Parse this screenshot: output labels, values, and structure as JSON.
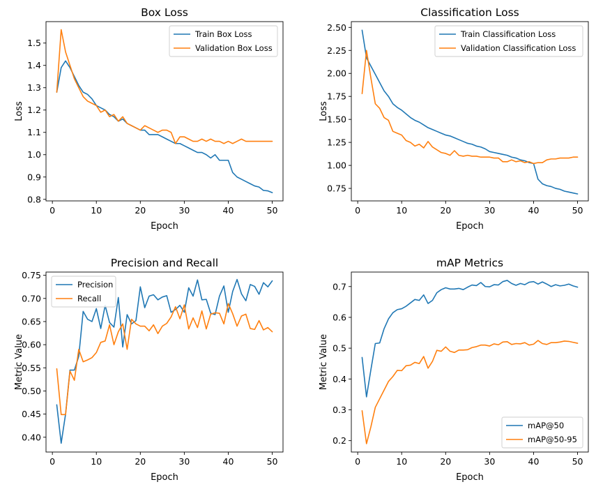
{
  "colors": {
    "blue": "#1f77b4",
    "orange": "#ff7f0e"
  },
  "chart_data": [
    {
      "type": "line",
      "title": "Box Loss",
      "xlabel": "Epoch",
      "ylabel": "Loss",
      "xlim": [
        -1.45,
        52.45
      ],
      "ylim": [
        0.793,
        1.596
      ],
      "xticks": [
        0,
        10,
        20,
        30,
        40,
        50
      ],
      "yticks": [
        0.8,
        0.9,
        1.0,
        1.1,
        1.2,
        1.3,
        1.4,
        1.5
      ],
      "ytick_labels": [
        "0.8",
        "0.9",
        "1.0",
        "1.1",
        "1.2",
        "1.3",
        "1.4",
        "1.5"
      ],
      "legend_position": "upper right",
      "grid": false,
      "series": [
        {
          "name": "Train Box Loss",
          "color": "#1f77b4",
          "x": [
            1,
            2,
            3,
            4,
            5,
            6,
            7,
            8,
            9,
            10,
            11,
            12,
            13,
            14,
            15,
            16,
            17,
            18,
            19,
            20,
            21,
            22,
            23,
            24,
            25,
            26,
            27,
            28,
            29,
            30,
            31,
            32,
            33,
            34,
            35,
            36,
            37,
            38,
            39,
            40,
            41,
            42,
            43,
            44,
            45,
            46,
            47,
            48,
            49,
            50
          ],
          "values": [
            1.28,
            1.39,
            1.42,
            1.39,
            1.35,
            1.31,
            1.28,
            1.27,
            1.25,
            1.22,
            1.21,
            1.2,
            1.18,
            1.17,
            1.15,
            1.16,
            1.14,
            1.13,
            1.12,
            1.11,
            1.11,
            1.09,
            1.09,
            1.09,
            1.08,
            1.07,
            1.06,
            1.05,
            1.05,
            1.04,
            1.03,
            1.02,
            1.01,
            1.01,
            1.0,
            0.985,
            1.0,
            0.975,
            0.975,
            0.975,
            0.92,
            0.9,
            0.89,
            0.88,
            0.87,
            0.86,
            0.855,
            0.84,
            0.838,
            0.83
          ]
        },
        {
          "name": "Validation Box Loss",
          "color": "#ff7f0e",
          "x": [
            1,
            2,
            3,
            4,
            5,
            6,
            7,
            8,
            9,
            10,
            11,
            12,
            13,
            14,
            15,
            16,
            17,
            18,
            19,
            20,
            21,
            22,
            23,
            24,
            25,
            26,
            27,
            28,
            29,
            30,
            31,
            32,
            33,
            34,
            35,
            36,
            37,
            38,
            39,
            40,
            41,
            42,
            43,
            44,
            45,
            46,
            47,
            48,
            49,
            50
          ],
          "values": [
            1.28,
            1.56,
            1.46,
            1.4,
            1.34,
            1.3,
            1.26,
            1.24,
            1.23,
            1.22,
            1.19,
            1.2,
            1.17,
            1.18,
            1.15,
            1.17,
            1.14,
            1.13,
            1.12,
            1.11,
            1.13,
            1.12,
            1.11,
            1.1,
            1.11,
            1.11,
            1.1,
            1.05,
            1.08,
            1.08,
            1.07,
            1.06,
            1.06,
            1.07,
            1.06,
            1.07,
            1.06,
            1.06,
            1.05,
            1.06,
            1.05,
            1.06,
            1.07,
            1.06,
            1.06,
            1.06,
            1.06,
            1.06,
            1.06,
            1.06
          ]
        }
      ]
    },
    {
      "type": "line",
      "title": "Classification Loss",
      "xlabel": "Epoch",
      "ylabel": "Loss",
      "xlim": [
        -1.45,
        52.45
      ],
      "ylim": [
        0.614,
        2.563
      ],
      "xticks": [
        0,
        10,
        20,
        30,
        40,
        50
      ],
      "yticks": [
        0.75,
        1.0,
        1.25,
        1.5,
        1.75,
        2.0,
        2.25,
        2.5
      ],
      "ytick_labels": [
        "0.75",
        "1.00",
        "1.25",
        "1.50",
        "1.75",
        "2.00",
        "2.25",
        "2.50"
      ],
      "legend_position": "upper right",
      "grid": false,
      "series": [
        {
          "name": "Train Classification Loss",
          "color": "#1f77b4",
          "x": [
            1,
            2,
            3,
            4,
            5,
            6,
            7,
            8,
            9,
            10,
            11,
            12,
            13,
            14,
            15,
            16,
            17,
            18,
            19,
            20,
            21,
            22,
            23,
            24,
            25,
            26,
            27,
            28,
            29,
            30,
            31,
            32,
            33,
            34,
            35,
            36,
            37,
            38,
            39,
            40,
            41,
            42,
            43,
            44,
            45,
            46,
            47,
            48,
            49,
            50
          ],
          "values": [
            2.47,
            2.17,
            2.08,
            1.99,
            1.9,
            1.81,
            1.75,
            1.67,
            1.63,
            1.6,
            1.56,
            1.52,
            1.49,
            1.47,
            1.44,
            1.41,
            1.39,
            1.37,
            1.35,
            1.33,
            1.32,
            1.3,
            1.28,
            1.26,
            1.24,
            1.23,
            1.21,
            1.2,
            1.18,
            1.15,
            1.14,
            1.13,
            1.12,
            1.11,
            1.09,
            1.08,
            1.06,
            1.05,
            1.03,
            1.02,
            0.85,
            0.8,
            0.78,
            0.77,
            0.75,
            0.74,
            0.72,
            0.71,
            0.7,
            0.69
          ]
        },
        {
          "name": "Validation Classification Loss",
          "color": "#ff7f0e",
          "x": [
            1,
            2,
            3,
            4,
            5,
            6,
            7,
            8,
            9,
            10,
            11,
            12,
            13,
            14,
            15,
            16,
            17,
            18,
            19,
            20,
            21,
            22,
            23,
            24,
            25,
            26,
            27,
            28,
            29,
            30,
            31,
            32,
            33,
            34,
            35,
            36,
            37,
            38,
            39,
            40,
            41,
            42,
            43,
            44,
            45,
            46,
            47,
            48,
            49,
            50
          ],
          "values": [
            1.78,
            2.25,
            1.95,
            1.67,
            1.62,
            1.52,
            1.49,
            1.37,
            1.35,
            1.33,
            1.27,
            1.25,
            1.21,
            1.23,
            1.19,
            1.26,
            1.2,
            1.17,
            1.14,
            1.13,
            1.11,
            1.16,
            1.11,
            1.1,
            1.11,
            1.1,
            1.1,
            1.09,
            1.09,
            1.09,
            1.08,
            1.08,
            1.04,
            1.04,
            1.06,
            1.04,
            1.05,
            1.03,
            1.04,
            1.02,
            1.03,
            1.03,
            1.06,
            1.07,
            1.07,
            1.08,
            1.08,
            1.08,
            1.09,
            1.09
          ]
        }
      ]
    },
    {
      "type": "line",
      "title": "Precision and Recall",
      "xlabel": "Epoch",
      "ylabel": "Metric Value",
      "xlim": [
        -1.45,
        52.45
      ],
      "ylim": [
        0.368,
        0.757
      ],
      "xticks": [
        0,
        10,
        20,
        30,
        40,
        50
      ],
      "yticks": [
        0.4,
        0.45,
        0.5,
        0.55,
        0.6,
        0.65,
        0.7,
        0.75
      ],
      "ytick_labels": [
        "0.40",
        "0.45",
        "0.50",
        "0.55",
        "0.60",
        "0.65",
        "0.70",
        "0.75"
      ],
      "legend_position": "upper left",
      "grid": false,
      "series": [
        {
          "name": "Precision",
          "color": "#1f77b4",
          "x": [
            1,
            2,
            3,
            4,
            5,
            6,
            7,
            8,
            9,
            10,
            11,
            12,
            13,
            14,
            15,
            16,
            17,
            18,
            19,
            20,
            21,
            22,
            23,
            24,
            25,
            26,
            27,
            28,
            29,
            30,
            31,
            32,
            33,
            34,
            35,
            36,
            37,
            38,
            39,
            40,
            41,
            42,
            43,
            44,
            45,
            46,
            47,
            48,
            49,
            50
          ],
          "values": [
            0.47,
            0.387,
            0.45,
            0.545,
            0.545,
            0.575,
            0.672,
            0.655,
            0.65,
            0.678,
            0.635,
            0.685,
            0.648,
            0.638,
            0.702,
            0.595,
            0.665,
            0.645,
            0.652,
            0.725,
            0.68,
            0.705,
            0.708,
            0.697,
            0.703,
            0.706,
            0.67,
            0.676,
            0.685,
            0.67,
            0.723,
            0.705,
            0.74,
            0.697,
            0.698,
            0.668,
            0.665,
            0.705,
            0.727,
            0.67,
            0.715,
            0.741,
            0.71,
            0.695,
            0.73,
            0.726,
            0.709,
            0.734,
            0.725,
            0.738
          ]
        },
        {
          "name": "Recall",
          "color": "#ff7f0e",
          "x": [
            1,
            2,
            3,
            4,
            5,
            6,
            7,
            8,
            9,
            10,
            11,
            12,
            13,
            14,
            15,
            16,
            17,
            18,
            19,
            20,
            21,
            22,
            23,
            24,
            25,
            26,
            27,
            28,
            29,
            30,
            31,
            32,
            33,
            34,
            35,
            36,
            37,
            38,
            39,
            40,
            41,
            42,
            43,
            44,
            45,
            46,
            47,
            48,
            49,
            50
          ],
          "values": [
            0.548,
            0.449,
            0.449,
            0.543,
            0.523,
            0.59,
            0.563,
            0.567,
            0.572,
            0.583,
            0.605,
            0.608,
            0.643,
            0.6,
            0.628,
            0.645,
            0.59,
            0.655,
            0.645,
            0.64,
            0.64,
            0.63,
            0.643,
            0.624,
            0.64,
            0.646,
            0.66,
            0.682,
            0.656,
            0.686,
            0.634,
            0.658,
            0.637,
            0.673,
            0.634,
            0.666,
            0.669,
            0.668,
            0.645,
            0.689,
            0.667,
            0.64,
            0.662,
            0.666,
            0.635,
            0.633,
            0.652,
            0.632,
            0.637,
            0.628
          ]
        }
      ]
    },
    {
      "type": "line",
      "title": "mAP Metrics",
      "xlabel": "Epoch",
      "ylabel": "Metric Value",
      "xlim": [
        -1.45,
        52.45
      ],
      "ylim": [
        0.163,
        0.747
      ],
      "xticks": [
        0,
        10,
        20,
        30,
        40,
        50
      ],
      "yticks": [
        0.2,
        0.3,
        0.4,
        0.5,
        0.6,
        0.7
      ],
      "ytick_labels": [
        "0.2",
        "0.3",
        "0.4",
        "0.5",
        "0.6",
        "0.7"
      ],
      "legend_position": "lower right",
      "grid": false,
      "series": [
        {
          "name": "mAP@50",
          "color": "#1f77b4",
          "x": [
            1,
            2,
            3,
            4,
            5,
            6,
            7,
            8,
            9,
            10,
            11,
            12,
            13,
            14,
            15,
            16,
            17,
            18,
            19,
            20,
            21,
            22,
            23,
            24,
            25,
            26,
            27,
            28,
            29,
            30,
            31,
            32,
            33,
            34,
            35,
            36,
            37,
            38,
            39,
            40,
            41,
            42,
            43,
            44,
            45,
            46,
            47,
            48,
            49,
            50
          ],
          "values": [
            0.47,
            0.342,
            0.43,
            0.515,
            0.517,
            0.563,
            0.595,
            0.615,
            0.625,
            0.628,
            0.636,
            0.647,
            0.658,
            0.655,
            0.673,
            0.645,
            0.655,
            0.68,
            0.69,
            0.696,
            0.692,
            0.692,
            0.694,
            0.69,
            0.698,
            0.705,
            0.703,
            0.713,
            0.7,
            0.699,
            0.706,
            0.705,
            0.716,
            0.72,
            0.71,
            0.704,
            0.71,
            0.706,
            0.714,
            0.716,
            0.708,
            0.715,
            0.708,
            0.7,
            0.706,
            0.702,
            0.704,
            0.708,
            0.702,
            0.698
          ]
        },
        {
          "name": "mAP@50-95",
          "color": "#ff7f0e",
          "x": [
            1,
            2,
            3,
            4,
            5,
            6,
            7,
            8,
            9,
            10,
            11,
            12,
            13,
            14,
            15,
            16,
            17,
            18,
            19,
            20,
            21,
            22,
            23,
            24,
            25,
            26,
            27,
            28,
            29,
            30,
            31,
            32,
            33,
            34,
            35,
            36,
            37,
            38,
            39,
            40,
            41,
            42,
            43,
            44,
            45,
            46,
            47,
            48,
            49,
            50
          ],
          "values": [
            0.297,
            0.19,
            0.245,
            0.308,
            0.336,
            0.364,
            0.392,
            0.408,
            0.428,
            0.427,
            0.443,
            0.445,
            0.454,
            0.45,
            0.473,
            0.435,
            0.457,
            0.493,
            0.49,
            0.504,
            0.49,
            0.486,
            0.494,
            0.494,
            0.495,
            0.502,
            0.505,
            0.51,
            0.51,
            0.507,
            0.514,
            0.511,
            0.52,
            0.521,
            0.512,
            0.515,
            0.514,
            0.518,
            0.51,
            0.513,
            0.525,
            0.515,
            0.512,
            0.518,
            0.518,
            0.52,
            0.523,
            0.522,
            0.519,
            0.516
          ]
        }
      ]
    }
  ]
}
